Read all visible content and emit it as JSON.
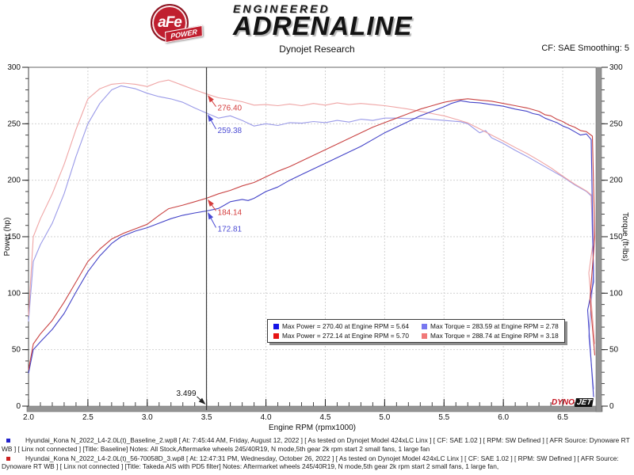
{
  "header": {
    "title": "Dynojet Research",
    "cf_label": "CF: SAE Smoothing: 5",
    "logo": {
      "afe": "aFe",
      "power": "POWER",
      "engineered": "ENGINEERED",
      "adrenaline": "ADRENALINE"
    }
  },
  "watermark": {
    "dyno": "DYNO",
    "jet": "JET"
  },
  "chart_data": {
    "type": "line",
    "xlabel": "Engine RPM (rpmx1000)",
    "ylabel_left": "Power (hp)",
    "ylabel_right": "Torque (ft-lbs)",
    "xlim": [
      2.0,
      6.78
    ],
    "ylim": [
      0,
      300
    ],
    "x_tick_values": [
      2.0,
      2.5,
      3.0,
      3.5,
      4.0,
      4.5,
      5.0,
      5.5,
      6.0,
      6.5
    ],
    "x_tick_labels": [
      "2.0",
      "2.5",
      "3.0",
      "3.5",
      "4.0",
      "4.5",
      "5.0",
      "5.5",
      "6.0",
      "6.5"
    ],
    "x_minor_step": 0.1,
    "y_tick_values": [
      0,
      50,
      100,
      150,
      200,
      250,
      300
    ],
    "y_tick_labels": [
      "0",
      "50",
      "100",
      "150",
      "200",
      "250",
      "300"
    ],
    "y_minor_step": 10,
    "grid": true,
    "legend": {
      "items": [
        {
          "swatch": "#1414e6",
          "text": "Max Power = 270.40 at Engine RPM = 5.64"
        },
        {
          "swatch": "#7878f0",
          "text": "Max Torque = 283.59 at Engine RPM = 2.78"
        },
        {
          "swatch": "#e61414",
          "text": "Max Power = 272.14 at Engine RPM = 5.70"
        },
        {
          "swatch": "#f07878",
          "text": "Max Torque = 288.74 at Engine RPM = 3.18"
        }
      ]
    },
    "cursor": {
      "x": 3.499,
      "label": "3.499",
      "readouts": [
        {
          "text": "276.40",
          "value": 276.4,
          "color": "#d43c3c",
          "dy": 21
        },
        {
          "text": "259.38",
          "value": 259.38,
          "color": "#4a4ad4",
          "dy": 25
        },
        {
          "text": "184.14",
          "value": 184.14,
          "color": "#d43c3c",
          "dy": 21
        },
        {
          "text": "172.81",
          "value": 172.81,
          "color": "#4a4ad4",
          "dy": 26
        }
      ]
    },
    "series": [
      {
        "id": "baseline-torque",
        "name": "Baseline Torque (ft-lbs)",
        "color": "#9a9ae8",
        "axis": "right",
        "points": [
          [
            2.0,
            75
          ],
          [
            2.04,
            128
          ],
          [
            2.1,
            143
          ],
          [
            2.2,
            162
          ],
          [
            2.3,
            188
          ],
          [
            2.4,
            221
          ],
          [
            2.5,
            250
          ],
          [
            2.6,
            268
          ],
          [
            2.7,
            280
          ],
          [
            2.78,
            283.6
          ],
          [
            2.9,
            281
          ],
          [
            3.0,
            277
          ],
          [
            3.1,
            274
          ],
          [
            3.2,
            272
          ],
          [
            3.3,
            269
          ],
          [
            3.4,
            264
          ],
          [
            3.5,
            259.4
          ],
          [
            3.6,
            255
          ],
          [
            3.7,
            257
          ],
          [
            3.8,
            253
          ],
          [
            3.9,
            248
          ],
          [
            4.0,
            250
          ],
          [
            4.1,
            248.5
          ],
          [
            4.2,
            251
          ],
          [
            4.3,
            250.5
          ],
          [
            4.4,
            252
          ],
          [
            4.5,
            251
          ],
          [
            4.6,
            253
          ],
          [
            4.7,
            251.5
          ],
          [
            4.8,
            254
          ],
          [
            4.9,
            253
          ],
          [
            5.0,
            255
          ],
          [
            5.1,
            255
          ],
          [
            5.2,
            254.6
          ],
          [
            5.3,
            254.8
          ],
          [
            5.4,
            253.9
          ],
          [
            5.5,
            253
          ],
          [
            5.64,
            251.8
          ],
          [
            5.7,
            250
          ],
          [
            5.75,
            246
          ],
          [
            5.8,
            242
          ],
          [
            5.85,
            244
          ],
          [
            5.9,
            237.6
          ],
          [
            6.0,
            232.5
          ],
          [
            6.1,
            226.5
          ],
          [
            6.2,
            221
          ],
          [
            6.3,
            215
          ],
          [
            6.4,
            209
          ],
          [
            6.5,
            203
          ],
          [
            6.6,
            196
          ],
          [
            6.7,
            190
          ],
          [
            6.74,
            186
          ],
          [
            6.76,
            120
          ],
          [
            6.72,
            62
          ],
          [
            6.76,
            15
          ]
        ]
      },
      {
        "id": "takeda-torque",
        "name": "Takeda AIS Torque (ft-lbs)",
        "color": "#efa5a5",
        "axis": "right",
        "points": [
          [
            2.0,
            80
          ],
          [
            2.04,
            150
          ],
          [
            2.1,
            166
          ],
          [
            2.2,
            188
          ],
          [
            2.3,
            214
          ],
          [
            2.4,
            245
          ],
          [
            2.5,
            272
          ],
          [
            2.6,
            281
          ],
          [
            2.7,
            285
          ],
          [
            2.8,
            286
          ],
          [
            2.9,
            285
          ],
          [
            3.0,
            283
          ],
          [
            3.1,
            287
          ],
          [
            3.18,
            288.7
          ],
          [
            3.3,
            284
          ],
          [
            3.4,
            280
          ],
          [
            3.5,
            276.4
          ],
          [
            3.6,
            273
          ],
          [
            3.7,
            271.5
          ],
          [
            3.8,
            269.5
          ],
          [
            3.9,
            266.5
          ],
          [
            4.0,
            267
          ],
          [
            4.1,
            266
          ],
          [
            4.2,
            267.5
          ],
          [
            4.3,
            266
          ],
          [
            4.4,
            268
          ],
          [
            4.5,
            266.5
          ],
          [
            4.6,
            268.5
          ],
          [
            4.7,
            267
          ],
          [
            4.8,
            268
          ],
          [
            4.9,
            267
          ],
          [
            5.0,
            266
          ],
          [
            5.1,
            264.5
          ],
          [
            5.2,
            263
          ],
          [
            5.3,
            261
          ],
          [
            5.4,
            259
          ],
          [
            5.5,
            257
          ],
          [
            5.6,
            254
          ],
          [
            5.7,
            250.8
          ],
          [
            5.8,
            245.5
          ],
          [
            5.9,
            240
          ],
          [
            6.0,
            234.6
          ],
          [
            6.1,
            229
          ],
          [
            6.2,
            223.6
          ],
          [
            6.3,
            217.5
          ],
          [
            6.4,
            211
          ],
          [
            6.5,
            203.6
          ],
          [
            6.6,
            196.6
          ],
          [
            6.7,
            190.5
          ],
          [
            6.74,
            187
          ],
          [
            6.76,
            148
          ],
          [
            6.72,
            118
          ],
          [
            6.77,
            55
          ]
        ]
      },
      {
        "id": "baseline-power",
        "name": "Baseline Power (hp)",
        "color": "#4343c8",
        "axis": "left",
        "points": [
          [
            2.0,
            29
          ],
          [
            2.04,
            50
          ],
          [
            2.1,
            57
          ],
          [
            2.2,
            68
          ],
          [
            2.3,
            82
          ],
          [
            2.4,
            101
          ],
          [
            2.5,
            119
          ],
          [
            2.6,
            133
          ],
          [
            2.7,
            144
          ],
          [
            2.78,
            150
          ],
          [
            2.9,
            155
          ],
          [
            3.0,
            158
          ],
          [
            3.1,
            162
          ],
          [
            3.2,
            166
          ],
          [
            3.3,
            169
          ],
          [
            3.4,
            171
          ],
          [
            3.5,
            172.8
          ],
          [
            3.6,
            175
          ],
          [
            3.65,
            178
          ],
          [
            3.7,
            181
          ],
          [
            3.8,
            183
          ],
          [
            3.85,
            182
          ],
          [
            3.9,
            184
          ],
          [
            4.0,
            190
          ],
          [
            4.1,
            194
          ],
          [
            4.2,
            200
          ],
          [
            4.3,
            205
          ],
          [
            4.4,
            210
          ],
          [
            4.5,
            215
          ],
          [
            4.6,
            220
          ],
          [
            4.7,
            225
          ],
          [
            4.8,
            230
          ],
          [
            4.9,
            236
          ],
          [
            5.0,
            242
          ],
          [
            5.1,
            247
          ],
          [
            5.2,
            252
          ],
          [
            5.3,
            257
          ],
          [
            5.4,
            261
          ],
          [
            5.5,
            265
          ],
          [
            5.56,
            268
          ],
          [
            5.64,
            270.4
          ],
          [
            5.72,
            269
          ],
          [
            5.8,
            268.5
          ],
          [
            5.9,
            267
          ],
          [
            6.0,
            265.5
          ],
          [
            6.1,
            263
          ],
          [
            6.2,
            261
          ],
          [
            6.25,
            259
          ],
          [
            6.3,
            258
          ],
          [
            6.35,
            255
          ],
          [
            6.4,
            253
          ],
          [
            6.45,
            251
          ],
          [
            6.5,
            248
          ],
          [
            6.55,
            246
          ],
          [
            6.6,
            243
          ],
          [
            6.65,
            240
          ],
          [
            6.7,
            241
          ],
          [
            6.74,
            236
          ],
          [
            6.76,
            110
          ],
          [
            6.71,
            85
          ],
          [
            6.76,
            8
          ]
        ]
      },
      {
        "id": "takeda-power",
        "name": "Takeda AIS Power (hp)",
        "color": "#c94343",
        "axis": "left",
        "points": [
          [
            2.0,
            32
          ],
          [
            2.04,
            55
          ],
          [
            2.1,
            64
          ],
          [
            2.2,
            76
          ],
          [
            2.3,
            92
          ],
          [
            2.4,
            110
          ],
          [
            2.5,
            128
          ],
          [
            2.6,
            139
          ],
          [
            2.7,
            148
          ],
          [
            2.8,
            153
          ],
          [
            2.9,
            157
          ],
          [
            3.0,
            161
          ],
          [
            3.1,
            169
          ],
          [
            3.18,
            174.8
          ],
          [
            3.3,
            178
          ],
          [
            3.4,
            181
          ],
          [
            3.5,
            184.1
          ],
          [
            3.6,
            188
          ],
          [
            3.7,
            191
          ],
          [
            3.8,
            195
          ],
          [
            3.9,
            198
          ],
          [
            4.0,
            203
          ],
          [
            4.1,
            208
          ],
          [
            4.2,
            212
          ],
          [
            4.3,
            217
          ],
          [
            4.4,
            222
          ],
          [
            4.5,
            227
          ],
          [
            4.6,
            232
          ],
          [
            4.7,
            237
          ],
          [
            4.8,
            242
          ],
          [
            4.9,
            247
          ],
          [
            5.0,
            251
          ],
          [
            5.1,
            255
          ],
          [
            5.2,
            259
          ],
          [
            5.3,
            263
          ],
          [
            5.4,
            266
          ],
          [
            5.5,
            269
          ],
          [
            5.6,
            271
          ],
          [
            5.7,
            272.1
          ],
          [
            5.8,
            271
          ],
          [
            5.9,
            270
          ],
          [
            6.0,
            268
          ],
          [
            6.1,
            266
          ],
          [
            6.2,
            264
          ],
          [
            6.3,
            261
          ],
          [
            6.35,
            258
          ],
          [
            6.4,
            257
          ],
          [
            6.45,
            254
          ],
          [
            6.5,
            252
          ],
          [
            6.55,
            249
          ],
          [
            6.6,
            247
          ],
          [
            6.65,
            244
          ],
          [
            6.7,
            243
          ],
          [
            6.75,
            239
          ],
          [
            6.77,
            150
          ],
          [
            6.73,
            95
          ],
          [
            6.77,
            45
          ]
        ]
      }
    ]
  },
  "footnotes": [
    {
      "bullet_color": "#2222cc",
      "text": "Hyundai_Kona N_2022_L4-2.0L(t)_Baseline_2.wp8 [ At: 7:45:44 AM, Friday, August 12, 2022 ] [ As tested on Dynojet Model 424xLC Linx ] [ CF: SAE 1.02 ] [ RPM: SW Defined ] [ AFR Source: Dynoware RT WB ] [ Linx not connected ] [Title: Baseline]  Notes: All Stock,Aftermarke wheels 245/40R19, N mode,5th gear 2k rpm start 2 small fans, 1 large fan"
    },
    {
      "bullet_color": "#cc2222",
      "text": "Hyundai_Kona N_2022_L4-2.0L(t)_56-70058D_3.wp8 [ At: 12:47:31 PM, Wednesday, October 26, 2022 ] [ As tested on Dynojet Model 424xLC Linx ] [ CF: SAE 1.02 ] [ RPM: SW Defined ] [ AFR Source: Dynoware RT WB ] [ Linx not connected ] [Title: Takeda AIS with PD5 filter]  Notes:  Aftermarket wheels 245/40R19, N mode,5th gear 2k rpm start 2 small fans, 1 large fan,"
    }
  ]
}
